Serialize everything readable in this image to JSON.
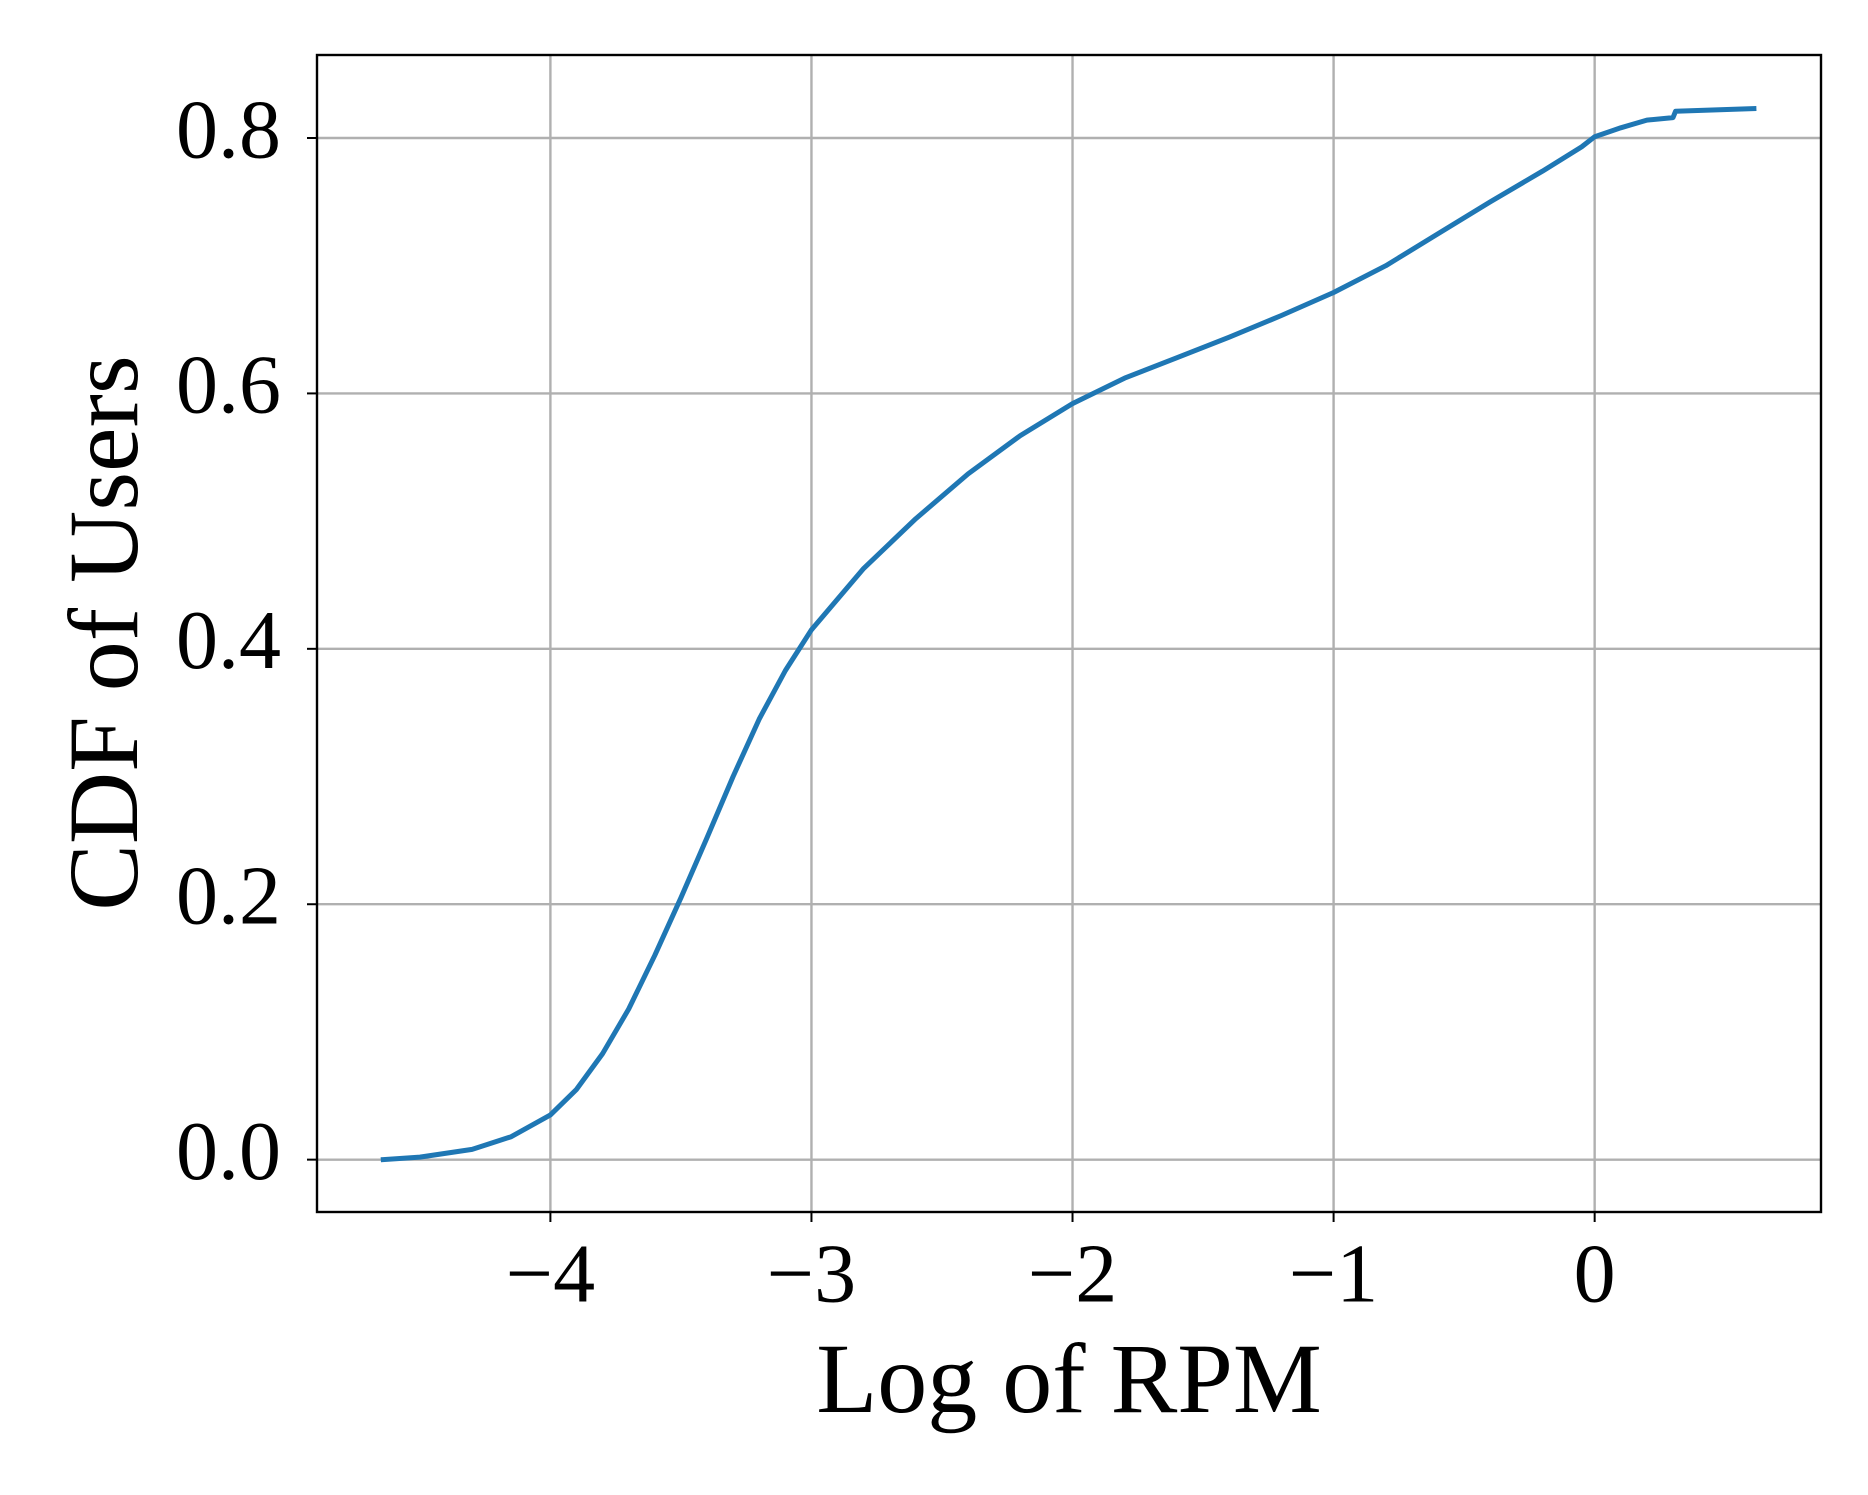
{
  "chart_data": {
    "type": "line",
    "xlabel": "Log of RPM",
    "ylabel": "CDF of Users",
    "x": [
      -4.64,
      -4.5,
      -4.3,
      -4.15,
      -4.0,
      -3.9,
      -3.8,
      -3.7,
      -3.6,
      -3.5,
      -3.4,
      -3.3,
      -3.2,
      -3.1,
      -3.0,
      -2.8,
      -2.6,
      -2.4,
      -2.2,
      -2.0,
      -1.8,
      -1.6,
      -1.4,
      -1.2,
      -1.0,
      -0.8,
      -0.6,
      -0.4,
      -0.2,
      -0.05,
      0.0,
      0.1,
      0.2,
      0.3,
      0.31,
      0.61
    ],
    "series": [
      {
        "name": "CDF",
        "color": "#1f77b4",
        "values": [
          0.0,
          0.002,
          0.008,
          0.018,
          0.035,
          0.055,
          0.083,
          0.118,
          0.16,
          0.205,
          0.252,
          0.3,
          0.345,
          0.383,
          0.415,
          0.463,
          0.502,
          0.537,
          0.567,
          0.592,
          0.612,
          0.628,
          0.644,
          0.661,
          0.679,
          0.7,
          0.725,
          0.75,
          0.774,
          0.793,
          0.801,
          0.808,
          0.814,
          0.816,
          0.821,
          0.823
        ]
      }
    ],
    "xlim": [
      -4.894,
      0.867
    ],
    "ylim": [
      -0.041,
      0.865
    ],
    "xticks": [
      {
        "value": -4,
        "label": "−4"
      },
      {
        "value": -3,
        "label": "−3"
      },
      {
        "value": -2,
        "label": "−2"
      },
      {
        "value": -1,
        "label": "−1"
      },
      0
    ],
    "yticks": [
      {
        "value": 0,
        "label": "0.0"
      },
      0.2,
      0.4,
      0.6,
      0.8
    ],
    "grid": true
  }
}
